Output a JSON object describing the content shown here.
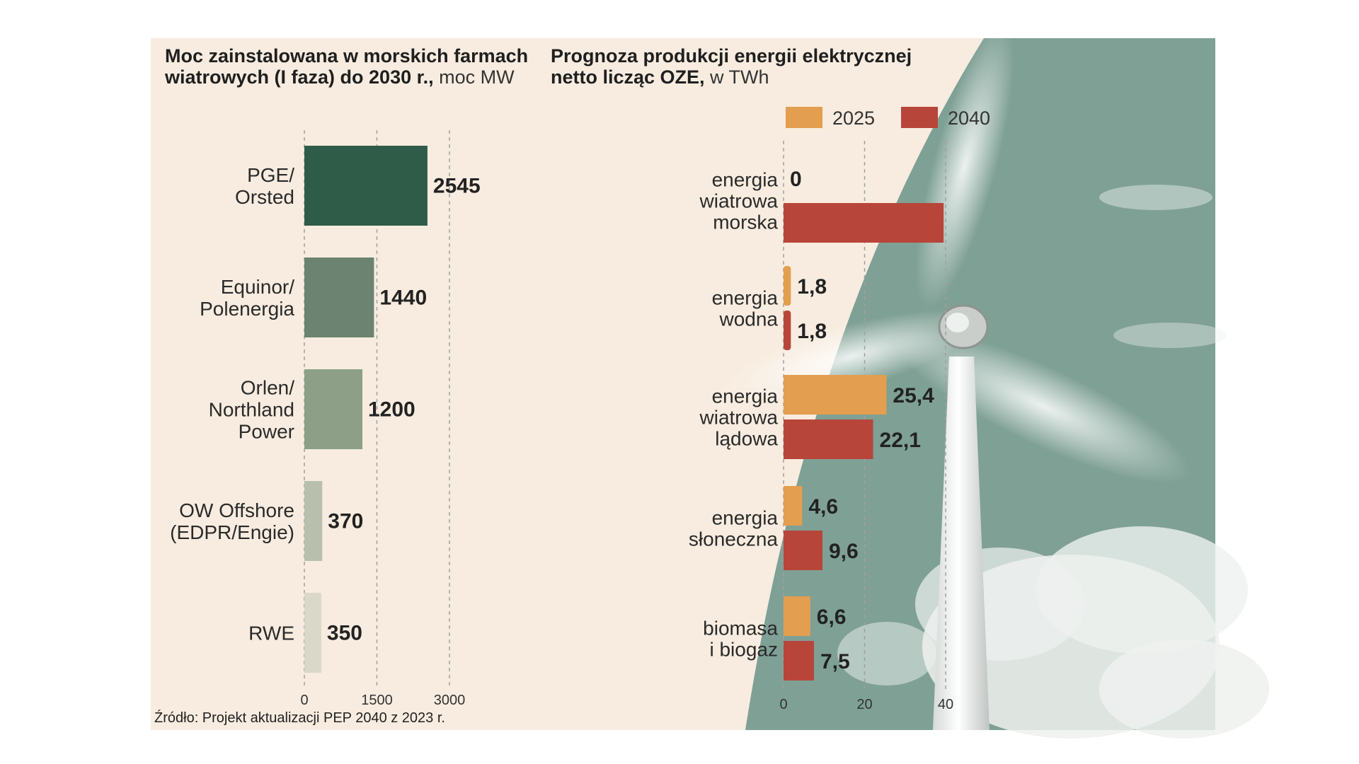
{
  "colors": {
    "background": "#f7ecdf",
    "teal": "#7fa095",
    "left_bars": [
      "#2f5c48",
      "#6b8370",
      "#8da087",
      "#b8c0ad",
      "#d9d8c9"
    ],
    "series_2025": "#e39e4f",
    "series_2040": "#b8453a",
    "grid": "#a0a0a0"
  },
  "left_chart_title": {
    "bold": "Moc zainstalowana w morskich farmach wiatrowych (I faza) do 2030 r.,",
    "unit": " moc MW"
  },
  "right_chart_title": {
    "bold": "Prognoza produkcji energii elektrycznej netto licząc OZE,",
    "unit": " w TWh"
  },
  "source": "Źródło: Projekt aktualizacji PEP 2040 z 2023 r.",
  "photo": {
    "icon": "wind-turbine-photo"
  },
  "chart_data": [
    {
      "type": "bar",
      "orientation": "horizontal",
      "title": "Moc zainstalowana w morskich farmach wiatrowych (I faza) do 2030 r., moc MW",
      "categories": [
        [
          "PGE/",
          "Orsted"
        ],
        [
          "Equinor/",
          "Polenergia"
        ],
        [
          "Orlen/",
          "Northland",
          "Power"
        ],
        [
          "OW Offshore",
          "(EDPR/Engie)"
        ],
        [
          "RWE"
        ]
      ],
      "values": [
        2545,
        1440,
        1200,
        370,
        350
      ],
      "value_labels": [
        "2545",
        "1440",
        "1200",
        "370",
        "350"
      ],
      "xlim": [
        0,
        3000
      ],
      "xticks": [
        0,
        1500,
        3000
      ],
      "xtick_labels": [
        "0",
        "1500",
        "3000"
      ],
      "grid": true
    },
    {
      "type": "bar",
      "orientation": "horizontal",
      "title": "Prognoza produkcji energii elektrycznej netto licząc OZE, w TWh",
      "categories": [
        [
          "energia",
          "wiatrowa",
          "morska"
        ],
        [
          "energia",
          "wodna"
        ],
        [
          "energia",
          "wiatrowa",
          "lądowa"
        ],
        [
          "energia",
          "słoneczna"
        ],
        [
          "biomasa",
          "i biogaz"
        ]
      ],
      "series": [
        {
          "name": "2025",
          "values": [
            0,
            1.8,
            25.4,
            4.6,
            6.6
          ],
          "labels": [
            "0",
            "1,8",
            "25,4",
            "4,6",
            "6,6"
          ]
        },
        {
          "name": "2040",
          "values": [
            39.5,
            1.8,
            22.1,
            9.6,
            7.5
          ],
          "labels": [
            "",
            "1,8",
            "22,1",
            "9,6",
            "7,5"
          ]
        }
      ],
      "legend": [
        "2025",
        "2040"
      ],
      "legend_position": "top",
      "xlim": [
        0,
        40
      ],
      "xticks": [
        0,
        20,
        40
      ],
      "xtick_labels": [
        "0",
        "20",
        "40"
      ],
      "grid": true
    }
  ]
}
